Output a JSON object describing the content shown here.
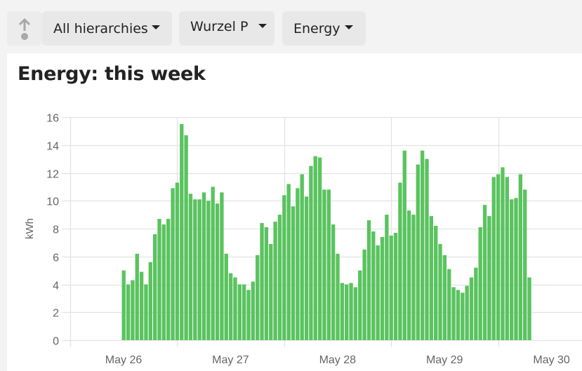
{
  "toolbar": {
    "up_button_icon": "arrow-up-dot-icon",
    "hierarchy_dropdown": {
      "label": "All hierarchies"
    },
    "entity_dropdown": {
      "label": "Wurzel P"
    },
    "metric_dropdown": {
      "label": "Energy"
    }
  },
  "page": {
    "title": "Energy: this week"
  },
  "colors": {
    "bar": "#5ac35f",
    "grid": "#e3e3e3",
    "axis_text": "#666666",
    "toolbar_bg": "#f3f3f3",
    "dropdown_bg": "#e8e8e8"
  },
  "chart_data": {
    "type": "bar",
    "title": "Energy: this week",
    "xlabel": "",
    "ylabel": "kWh",
    "ylim": [
      0,
      16
    ],
    "yticks": [
      0,
      2,
      4,
      6,
      8,
      10,
      12,
      14,
      16
    ],
    "xtick_labels": [
      "May 26",
      "May 27",
      "May 28",
      "May 29",
      "May 30"
    ],
    "grid": true,
    "legend": null,
    "bar_interval": "hourly",
    "start_offset_hours_into_first_day": 11.5,
    "values": [
      5.0,
      4.0,
      4.3,
      6.2,
      4.9,
      4.0,
      5.6,
      7.6,
      8.7,
      8.3,
      8.7,
      10.9,
      11.3,
      15.5,
      14.7,
      10.5,
      10.1,
      10.1,
      10.6,
      10.0,
      11.0,
      9.8,
      10.6,
      6.2,
      4.8,
      4.5,
      4.0,
      4.0,
      3.6,
      4.2,
      6.1,
      8.4,
      8.1,
      6.9,
      8.5,
      9.0,
      10.4,
      11.2,
      9.6,
      10.9,
      11.9,
      10.3,
      12.5,
      13.2,
      13.1,
      10.8,
      10.8,
      8.3,
      6.2,
      4.1,
      4.0,
      4.1,
      3.8,
      5.0,
      6.5,
      8.6,
      7.8,
      6.8,
      7.4,
      9.0,
      7.5,
      7.7,
      11.3,
      13.6,
      9.3,
      9.0,
      12.6,
      13.6,
      13.0,
      8.9,
      8.2,
      6.9,
      6.1,
      5.1,
      3.8,
      3.6,
      3.4,
      3.9,
      4.5,
      5.2,
      8.1,
      9.7,
      8.9,
      11.7,
      11.9,
      12.4,
      11.7,
      10.1,
      10.2,
      11.9,
      10.8,
      4.5
    ]
  }
}
